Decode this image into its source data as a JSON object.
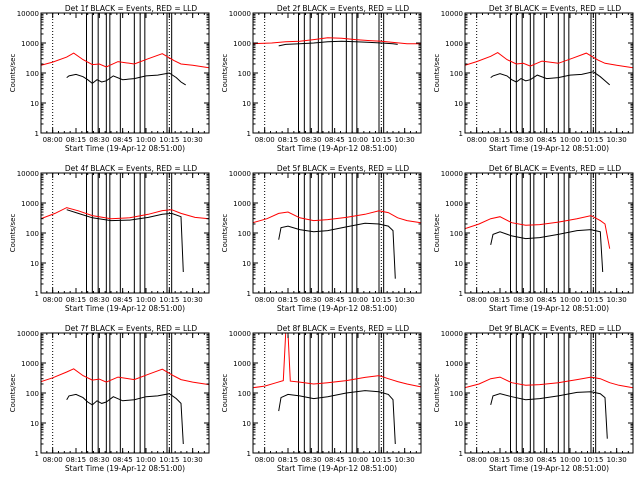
{
  "figure": {
    "xlabel": "Start Time (19-Apr-12 08:51:00)",
    "ylabel": "Counts/sec"
  },
  "chart_data": [
    {
      "type": "line",
      "title": "Det 1f BLACK = Events, RED = LLD",
      "xlabel": "Start Time (19-Apr-12 08:51:00)",
      "ylabel": "Counts/sec",
      "x_ticks": [
        "08:00",
        "08:15",
        "08:30",
        "08:45",
        "10:00",
        "10:15",
        "10:30"
      ],
      "y_ticks": [
        "1",
        "10",
        "100",
        "1000",
        "10000"
      ],
      "y_scale": "log",
      "ylim": [
        1,
        10000
      ],
      "series": [
        {
          "color": "red",
          "x": [
            0,
            5,
            11,
            14,
            18,
            22,
            25,
            28,
            33,
            40,
            46,
            52,
            57,
            60,
            65,
            72
          ],
          "y": [
            180,
            230,
            340,
            460,
            280,
            190,
            200,
            160,
            240,
            200,
            300,
            440,
            260,
            200,
            180,
            150
          ]
        },
        {
          "color": "black",
          "x": [
            11,
            12,
            15,
            18,
            20,
            22,
            24,
            26,
            28,
            31,
            35,
            40,
            45,
            50,
            55,
            58,
            60,
            62
          ],
          "y": [
            70,
            80,
            90,
            75,
            60,
            45,
            60,
            50,
            55,
            80,
            60,
            65,
            80,
            85,
            100,
            70,
            50,
            40
          ]
        }
      ],
      "vlines_solid": [
        19.5,
        22,
        24.5,
        28,
        29.5,
        34,
        40,
        42.5,
        44.5,
        54,
        56
      ],
      "vlines_dotted": [
        5,
        55
      ]
    },
    {
      "type": "line",
      "title": "Det 2f BLACK = Events, RED = LLD",
      "xlabel": "Start Time (19-Apr-12 08:51:00)",
      "ylabel": "Counts/sec",
      "x_ticks": [
        "08:00",
        "08:15",
        "08:30",
        "08:45",
        "10:00",
        "10:15",
        "10:30"
      ],
      "y_ticks": [
        "1",
        "10",
        "100",
        "1000",
        "10000"
      ],
      "y_scale": "log",
      "ylim": [
        1,
        10000
      ],
      "series": [
        {
          "color": "red",
          "x": [
            0,
            8,
            14,
            20,
            26,
            32,
            38,
            44,
            50,
            55,
            60,
            66,
            72
          ],
          "y": [
            950,
            1000,
            1100,
            1150,
            1300,
            1500,
            1450,
            1300,
            1200,
            1150,
            1050,
            950,
            950
          ]
        },
        {
          "color": "black",
          "x": [
            11,
            14,
            20,
            26,
            32,
            38,
            44,
            50,
            55,
            60,
            62
          ],
          "y": [
            800,
            900,
            950,
            1000,
            1100,
            1150,
            1100,
            1050,
            1000,
            950,
            900
          ]
        }
      ],
      "vlines_solid": [
        19.5,
        22,
        24.5,
        28,
        29.5,
        34,
        40,
        42.5,
        44.5,
        54,
        56
      ],
      "vlines_dotted": [
        5,
        55
      ]
    },
    {
      "type": "line",
      "title": "Det 3f BLACK = Events, RED = LLD",
      "xlabel": "Start Time (19-Apr-12 08:51:00)",
      "ylabel": "Counts/sec",
      "x_ticks": [
        "08:00",
        "08:15",
        "08:30",
        "08:45",
        "10:00",
        "10:15",
        "10:30"
      ],
      "y_ticks": [
        "1",
        "10",
        "100",
        "1000",
        "10000"
      ],
      "y_scale": "log",
      "ylim": [
        1,
        10000
      ],
      "series": [
        {
          "color": "red",
          "x": [
            0,
            5,
            11,
            14,
            18,
            22,
            25,
            28,
            33,
            40,
            46,
            52,
            57,
            60,
            65,
            72
          ],
          "y": [
            180,
            240,
            360,
            480,
            280,
            200,
            210,
            170,
            250,
            210,
            310,
            460,
            270,
            210,
            180,
            150
          ]
        },
        {
          "color": "black",
          "x": [
            11,
            12,
            15,
            18,
            20,
            22,
            24,
            26,
            28,
            31,
            35,
            40,
            45,
            50,
            55,
            58,
            60,
            62
          ],
          "y": [
            70,
            80,
            95,
            80,
            60,
            50,
            65,
            55,
            60,
            85,
            65,
            70,
            85,
            90,
            110,
            75,
            55,
            40
          ]
        }
      ],
      "vlines_solid": [
        19.5,
        22,
        24.5,
        28,
        29.5,
        34,
        40,
        42.5,
        44.5,
        54,
        56
      ],
      "vlines_dotted": [
        5,
        55
      ]
    },
    {
      "type": "line",
      "title": "Det 4f BLACK = Events, RED = LLD",
      "xlabel": "Start Time (19-Apr-12 08:51:00)",
      "ylabel": "Counts/sec",
      "x_ticks": [
        "08:00",
        "08:15",
        "08:30",
        "08:45",
        "10:00",
        "10:15",
        "10:30"
      ],
      "y_ticks": [
        "1",
        "10",
        "100",
        "1000",
        "10000"
      ],
      "y_scale": "log",
      "ylim": [
        1,
        10000
      ],
      "series": [
        {
          "color": "red",
          "x": [
            0,
            6,
            11,
            16,
            22,
            30,
            38,
            46,
            52,
            56,
            60,
            66,
            72
          ],
          "y": [
            300,
            450,
            700,
            550,
            380,
            300,
            320,
            420,
            560,
            600,
            450,
            330,
            300
          ]
        },
        {
          "color": "black",
          "x": [
            11,
            16,
            22,
            30,
            38,
            46,
            52,
            56,
            60,
            61
          ],
          "y": [
            600,
            450,
            320,
            260,
            270,
            330,
            420,
            450,
            350,
            5
          ]
        }
      ],
      "vlines_solid": [
        19.5,
        22,
        24.5,
        28,
        29.5,
        34,
        40,
        42.5,
        44.5,
        54,
        56
      ],
      "vlines_dotted": [
        5,
        55
      ]
    },
    {
      "type": "line",
      "title": "Det 5f BLACK = Events, RED = LLD",
      "xlabel": "Start Time (19-Apr-12 08:51:00)",
      "ylabel": "Counts/sec",
      "x_ticks": [
        "08:00",
        "08:15",
        "08:30",
        "08:45",
        "10:00",
        "10:15",
        "10:30"
      ],
      "y_ticks": [
        "1",
        "10",
        "100",
        "1000",
        "10000"
      ],
      "y_scale": "log",
      "ylim": [
        1,
        10000
      ],
      "series": [
        {
          "color": "red",
          "x": [
            0,
            6,
            11,
            15,
            20,
            26,
            32,
            40,
            48,
            54,
            58,
            62,
            66,
            72
          ],
          "y": [
            220,
            300,
            450,
            500,
            320,
            260,
            280,
            330,
            420,
            550,
            480,
            320,
            260,
            220
          ]
        },
        {
          "color": "black",
          "x": [
            11,
            12,
            15,
            20,
            26,
            32,
            40,
            48,
            54,
            58,
            60,
            61
          ],
          "y": [
            60,
            150,
            170,
            130,
            110,
            120,
            160,
            210,
            200,
            170,
            120,
            3
          ]
        }
      ],
      "vlines_solid": [
        19.5,
        22,
        24.5,
        28,
        29.5,
        34,
        40,
        42.5,
        44.5,
        54,
        56
      ],
      "vlines_dotted": [
        5,
        55
      ]
    },
    {
      "type": "line",
      "title": "Det 6f BLACK = Events, RED = LLD",
      "xlabel": "Start Time (19-Apr-12 08:51:00)",
      "ylabel": "Counts/sec",
      "x_ticks": [
        "08:00",
        "08:15",
        "08:30",
        "08:45",
        "10:00",
        "10:15",
        "10:30"
      ],
      "y_ticks": [
        "1",
        "10",
        "100",
        "1000",
        "10000"
      ],
      "y_scale": "log",
      "ylim": [
        1,
        10000
      ],
      "series": [
        {
          "color": "red",
          "x": [
            0,
            6,
            11,
            15,
            20,
            26,
            32,
            40,
            48,
            54,
            58,
            60,
            62
          ],
          "y": [
            140,
            200,
            300,
            350,
            220,
            180,
            190,
            230,
            300,
            380,
            260,
            200,
            30
          ]
        },
        {
          "color": "black",
          "x": [
            11,
            12,
            15,
            20,
            26,
            32,
            40,
            48,
            54,
            58,
            59
          ],
          "y": [
            40,
            90,
            110,
            80,
            65,
            70,
            90,
            120,
            130,
            110,
            5
          ]
        }
      ],
      "vlines_solid": [
        19.5,
        22,
        24.5,
        28,
        29.5,
        34,
        40,
        42.5,
        44.5,
        54,
        56
      ],
      "vlines_dotted": [
        5,
        55
      ]
    },
    {
      "type": "line",
      "title": "Det 7f BLACK = Events, RED = LLD",
      "xlabel": "Start Time (19-Apr-12 08:51:00)",
      "ylabel": "Counts/sec",
      "x_ticks": [
        "08:00",
        "08:15",
        "08:30",
        "08:45",
        "10:00",
        "10:15",
        "10:30"
      ],
      "y_ticks": [
        "1",
        "10",
        "100",
        "1000",
        "10000"
      ],
      "y_scale": "log",
      "ylim": [
        1,
        10000
      ],
      "series": [
        {
          "color": "red",
          "x": [
            0,
            5,
            11,
            14,
            18,
            22,
            25,
            28,
            33,
            40,
            46,
            52,
            57,
            60,
            65,
            72
          ],
          "y": [
            240,
            320,
            500,
            640,
            380,
            270,
            290,
            230,
            340,
            280,
            420,
            620,
            370,
            280,
            230,
            190
          ]
        },
        {
          "color": "black",
          "x": [
            11,
            12,
            15,
            18,
            20,
            22,
            24,
            26,
            28,
            31,
            35,
            40,
            45,
            50,
            55,
            58,
            60,
            61
          ],
          "y": [
            60,
            80,
            90,
            70,
            50,
            40,
            55,
            45,
            50,
            75,
            55,
            60,
            75,
            80,
            95,
            65,
            45,
            2
          ]
        }
      ],
      "vlines_solid": [
        19.5,
        22,
        24.5,
        28,
        29.5,
        34,
        40,
        42.5,
        44.5,
        54,
        56
      ],
      "vlines_dotted": [
        5,
        55
      ]
    },
    {
      "type": "line",
      "title": "Det 8f BLACK = Events, RED = LLD",
      "xlabel": "Start Time (19-Apr-12 08:51:00)",
      "ylabel": "Counts/sec",
      "x_ticks": [
        "08:00",
        "08:15",
        "08:30",
        "08:45",
        "10:00",
        "10:15",
        "10:30"
      ],
      "y_ticks": [
        "1",
        "10",
        "100",
        "1000",
        "10000"
      ],
      "y_scale": "log",
      "ylim": [
        1,
        10000
      ],
      "series": [
        {
          "color": "red",
          "x": [
            0,
            5,
            10,
            13,
            14,
            15,
            16,
            20,
            26,
            32,
            40,
            48,
            54,
            58,
            62,
            66,
            72
          ],
          "y": [
            150,
            170,
            220,
            260,
            10000,
            10000,
            250,
            230,
            200,
            220,
            260,
            330,
            380,
            300,
            240,
            200,
            160
          ]
        },
        {
          "color": "black",
          "x": [
            11,
            12,
            15,
            20,
            26,
            32,
            40,
            48,
            54,
            58,
            60,
            61
          ],
          "y": [
            25,
            70,
            90,
            80,
            65,
            75,
            100,
            120,
            110,
            90,
            60,
            2
          ]
        }
      ],
      "vlines_solid": [
        19.5,
        22,
        24.5,
        28,
        29.5,
        34,
        40,
        42.5,
        44.5,
        54,
        56
      ],
      "vlines_dotted": [
        5,
        55
      ]
    },
    {
      "type": "line",
      "title": "Det 9f BLACK = Events, RED = LLD",
      "xlabel": "Start Time (19-Apr-12 08:51:00)",
      "ylabel": "Counts/sec",
      "x_ticks": [
        "08:00",
        "08:15",
        "08:30",
        "08:45",
        "10:00",
        "10:15",
        "10:30"
      ],
      "y_ticks": [
        "1",
        "10",
        "100",
        "1000",
        "10000"
      ],
      "y_scale": "log",
      "ylim": [
        1,
        10000
      ],
      "series": [
        {
          "color": "red",
          "x": [
            0,
            6,
            11,
            15,
            20,
            26,
            32,
            40,
            48,
            54,
            58,
            62,
            66,
            72
          ],
          "y": [
            150,
            200,
            300,
            340,
            220,
            180,
            190,
            220,
            280,
            340,
            300,
            220,
            180,
            150
          ]
        },
        {
          "color": "black",
          "x": [
            11,
            12,
            15,
            20,
            26,
            32,
            40,
            48,
            54,
            58,
            60,
            61
          ],
          "y": [
            40,
            80,
            95,
            75,
            60,
            65,
            80,
            105,
            110,
            95,
            70,
            3
          ]
        }
      ],
      "vlines_solid": [
        19.5,
        22,
        24.5,
        28,
        29.5,
        34,
        40,
        42.5,
        44.5,
        54,
        56
      ],
      "vlines_dotted": [
        5,
        55
      ]
    }
  ]
}
